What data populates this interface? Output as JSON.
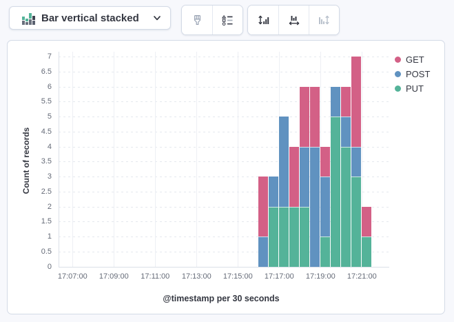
{
  "toolbar": {
    "chart_type_label": "Bar vertical stacked",
    "icon_buttons": [
      "visual-options-brush",
      "legend-settings",
      "left-axis",
      "bottom-axis",
      "right-axis"
    ],
    "right_axis_disabled": true
  },
  "colors": {
    "get": "#D36086",
    "post": "#6092C0",
    "put": "#54B399",
    "border": "#D3DAE6",
    "icon_dark": "#343741",
    "icon_muted": "#98A2B3",
    "icon_disabled": "#B9C1CC"
  },
  "chart_data": {
    "type": "bar",
    "stacked": true,
    "xlabel": "@timestamp per 30 seconds",
    "ylabel": "Count of records",
    "ylim": [
      0,
      7
    ],
    "y_tick_step": 0.5,
    "y_ticks": [
      "0",
      "0.5",
      "1",
      "1.5",
      "2",
      "2.5",
      "3",
      "3.5",
      "4",
      "4.5",
      "5",
      "5.5",
      "6",
      "6.5",
      "7"
    ],
    "x_ticks": [
      "17:07:00",
      "17:09:00",
      "17:11:00",
      "17:13:00",
      "17:15:00",
      "17:17:00",
      "17:19:00",
      "17:21:00"
    ],
    "buckets": [
      "17:16:00",
      "17:16:30",
      "17:17:00",
      "17:17:30",
      "17:18:00",
      "17:18:30",
      "17:19:00",
      "17:19:30",
      "17:20:00",
      "17:20:30",
      "17:21:00"
    ],
    "series": [
      {
        "name": "GET",
        "color": "#D36086",
        "values": [
          2,
          0,
          0,
          2,
          2,
          2,
          1,
          0,
          1,
          3,
          1
        ]
      },
      {
        "name": "POST",
        "color": "#6092C0",
        "values": [
          1,
          1,
          3,
          0,
          2,
          4,
          2,
          1,
          1,
          1,
          0
        ]
      },
      {
        "name": "PUT",
        "color": "#54B399",
        "values": [
          0,
          2,
          2,
          2,
          2,
          0,
          1,
          5,
          4,
          3,
          1
        ]
      }
    ],
    "stack_order_bottom_to_top": [
      "PUT",
      "POST",
      "GET"
    ],
    "legend_position": "right",
    "grid": true
  }
}
